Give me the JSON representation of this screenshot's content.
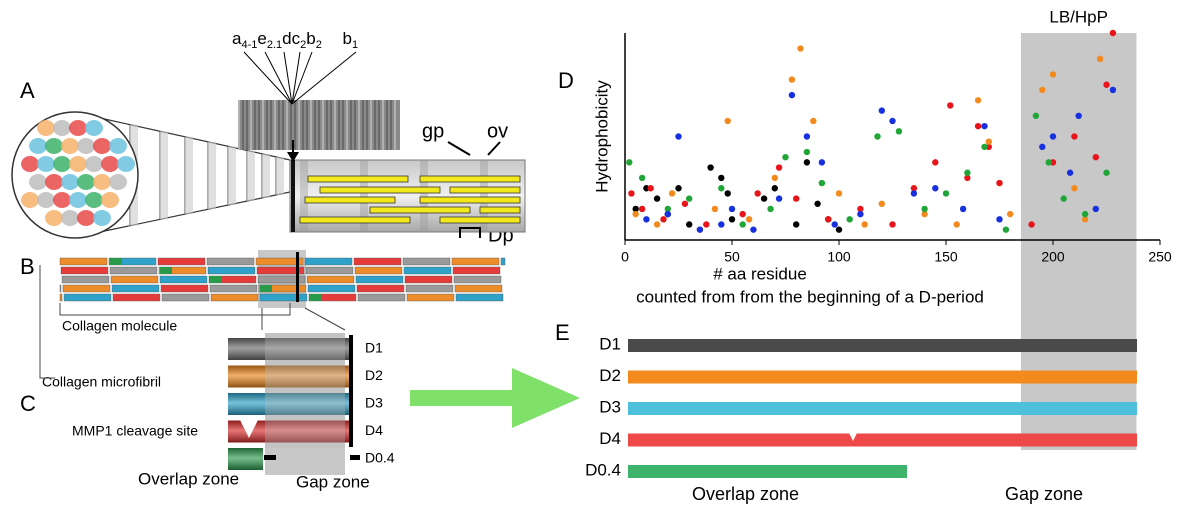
{
  "chart_data": {
    "type": "scatter",
    "ylabel": "Hydrophobicity",
    "xlabel": [
      "# aa residue",
      "counted from from the beginning of a D-period"
    ],
    "xlim": [
      0,
      250
    ],
    "xticks": [
      0,
      50,
      100,
      150,
      200,
      250
    ],
    "ylim": [
      0,
      4
    ],
    "shade": {
      "x": [
        185,
        239
      ],
      "label": "LB/HpP"
    },
    "series": [
      {
        "color": "#000000",
        "x": [
          5,
          10,
          15,
          20,
          25,
          30,
          40,
          45,
          48,
          50,
          65,
          70,
          80,
          85,
          90,
          95,
          100
        ],
        "values": [
          0.6,
          1.0,
          0.8,
          0.5,
          1.0,
          0.3,
          1.4,
          1.2,
          0.9,
          0.4,
          0.8,
          1.0,
          0.3,
          1.5,
          0.7,
          0.4,
          0.2
        ]
      },
      {
        "color": "#e8141a",
        "x": [
          3,
          8,
          12,
          18,
          28,
          38,
          55,
          62,
          72,
          80,
          95,
          110,
          125,
          135,
          145,
          152,
          160,
          165,
          170,
          175,
          190,
          200,
          210,
          220,
          225,
          228
        ],
        "values": [
          0.9,
          0.6,
          1.0,
          0.4,
          0.7,
          0.3,
          0.5,
          0.9,
          1.4,
          0.8,
          0.4,
          0.6,
          0.3,
          1.0,
          1.5,
          2.6,
          1.2,
          2.2,
          1.8,
          1.1,
          0.3,
          1.5,
          2.0,
          1.6,
          3.0,
          4.0
        ]
      },
      {
        "color": "#f28a1e",
        "x": [
          5,
          15,
          22,
          35,
          42,
          48,
          58,
          70,
          78,
          82,
          88,
          100,
          112,
          120,
          140,
          155,
          165,
          170,
          180,
          195,
          200,
          210,
          215,
          222
        ],
        "values": [
          0.5,
          0.3,
          0.9,
          0.2,
          0.6,
          2.3,
          0.4,
          1.2,
          3.1,
          3.7,
          2.3,
          0.9,
          0.3,
          0.7,
          0.5,
          0.3,
          2.7,
          1.9,
          0.5,
          2.9,
          3.2,
          1.0,
          0.4,
          3.5
        ]
      },
      {
        "color": "#1fa637",
        "x": [
          2,
          8,
          20,
          30,
          45,
          55,
          68,
          75,
          85,
          92,
          105,
          118,
          128,
          140,
          150,
          160,
          168,
          178,
          192,
          198,
          205,
          215,
          225
        ],
        "values": [
          1.5,
          1.2,
          0.6,
          0.8,
          1.0,
          0.3,
          0.6,
          1.6,
          1.7,
          1.1,
          0.4,
          2.0,
          2.1,
          0.6,
          0.9,
          1.3,
          1.8,
          0.2,
          2.4,
          1.5,
          0.8,
          0.5,
          1.3
        ]
      },
      {
        "color": "#1730e0",
        "x": [
          10,
          20,
          25,
          35,
          45,
          50,
          60,
          72,
          78,
          85,
          92,
          98,
          110,
          120,
          125,
          135,
          145,
          158,
          168,
          175,
          195,
          200,
          208,
          212,
          220,
          228
        ],
        "values": [
          0.4,
          0.5,
          2.0,
          0.2,
          0.3,
          0.6,
          0.2,
          0.8,
          2.8,
          2.0,
          1.5,
          0.3,
          0.5,
          2.5,
          2.3,
          0.9,
          1.0,
          0.6,
          2.2,
          0.4,
          1.8,
          2.0,
          1.3,
          2.4,
          0.6,
          2.9
        ]
      }
    ]
  },
  "panel_labels": [
    "A",
    "B",
    "C",
    "D",
    "E"
  ],
  "band_label": [
    "a",
    "4-1",
    "e",
    "2.1",
    "dc",
    "2",
    "b",
    "2",
    " b",
    "1"
  ],
  "fibril_labels": {
    "gp": "gp",
    "ov": "ov",
    "dp": "Dp"
  },
  "panel_b": {
    "molecule": "Collagen molecule",
    "microfibril": "Collagen microfibril"
  },
  "panel_c": {
    "rows": [
      "D1",
      "D2",
      "D3",
      "D4",
      "D0.4"
    ],
    "cleavage": "MMP1 cleavage site",
    "overlap": "Overlap zone",
    "gap": "Gap zone"
  },
  "panel_e": {
    "rows": [
      "D1",
      "D2",
      "D3",
      "D4",
      "D0.4"
    ],
    "overlap": "Overlap zone",
    "gap": "Gap zone"
  }
}
